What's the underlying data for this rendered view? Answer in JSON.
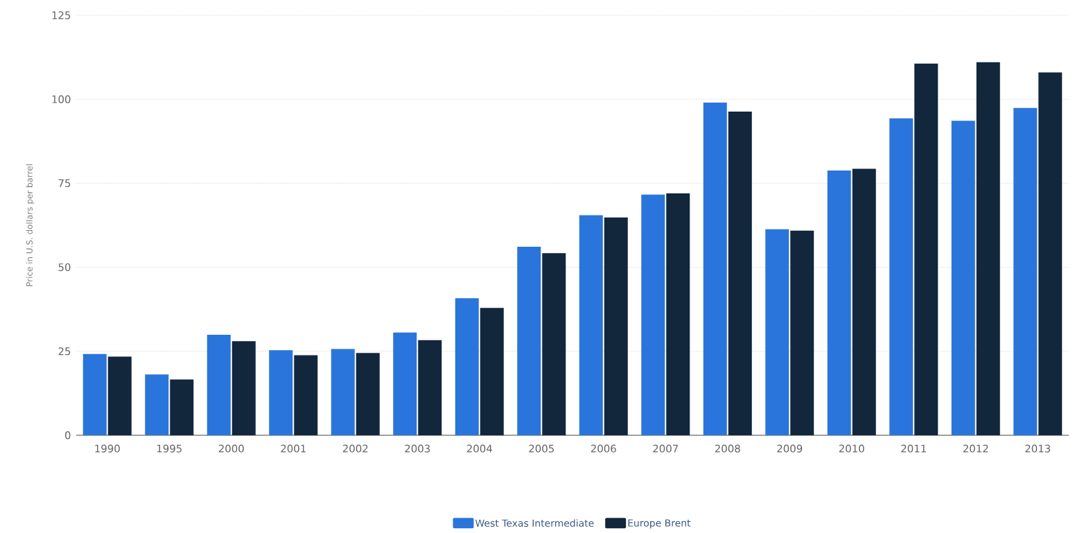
{
  "chart_data": {
    "type": "bar",
    "ylabel": "Price in U.S. dollars per barrel",
    "categories": [
      "1990",
      "1995",
      "2000",
      "2001",
      "2002",
      "2003",
      "2004",
      "2005",
      "2006",
      "2007",
      "2008",
      "2009",
      "2010",
      "2011",
      "2012",
      "2013"
    ],
    "series": [
      {
        "name": "West Texas Intermediate",
        "color": "#2a75dc",
        "values": [
          24.2,
          18.1,
          29.9,
          25.3,
          25.7,
          30.6,
          40.8,
          56.1,
          65.5,
          71.6,
          99.0,
          61.3,
          78.8,
          94.3,
          93.6,
          97.4
        ]
      },
      {
        "name": "Europe Brent",
        "color": "#12263c",
        "values": [
          23.4,
          16.6,
          28.0,
          23.8,
          24.5,
          28.3,
          37.9,
          54.2,
          64.8,
          72.0,
          96.3,
          60.9,
          79.3,
          110.6,
          111.0,
          108.0
        ]
      }
    ],
    "ylim": [
      0,
      125
    ],
    "yticks": [
      0,
      25,
      50,
      75,
      100,
      125
    ],
    "grid": "y",
    "legend": "bottom"
  }
}
